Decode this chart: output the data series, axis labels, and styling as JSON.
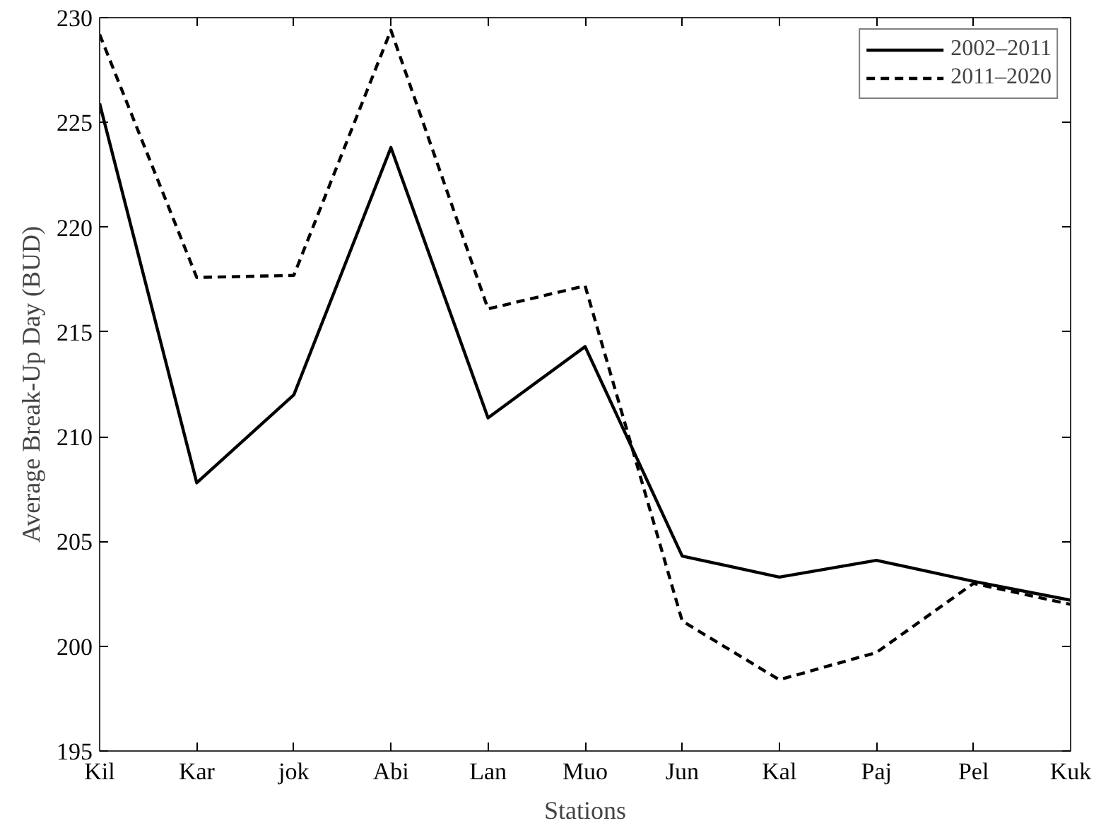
{
  "chart_data": {
    "type": "line",
    "xlabel": "Stations",
    "ylabel": "Average Break-Up Day (BUD)",
    "categories": [
      "Kil",
      "Kar",
      "jok",
      "Abi",
      "Lan",
      "Muo",
      "Jun",
      "Kal",
      "Paj",
      "Pel",
      "Kuk"
    ],
    "series": [
      {
        "name": "2002–2011",
        "color": "#000000",
        "line_style": "solid",
        "values": [
          225.9,
          207.8,
          212.0,
          223.8,
          210.9,
          214.3,
          204.3,
          203.3,
          204.1,
          203.1,
          202.2
        ]
      },
      {
        "name": "2011–2020",
        "color": "#000000",
        "line_style": "dashed",
        "values": [
          229.2,
          217.6,
          217.7,
          229.4,
          216.1,
          217.2,
          201.2,
          198.4,
          199.7,
          203.0,
          202.0
        ]
      }
    ],
    "ylim": [
      195,
      230
    ],
    "yticks": [
      195,
      200,
      205,
      210,
      215,
      220,
      225,
      230
    ],
    "grid": false,
    "legend": "top right",
    "marker": "none"
  }
}
